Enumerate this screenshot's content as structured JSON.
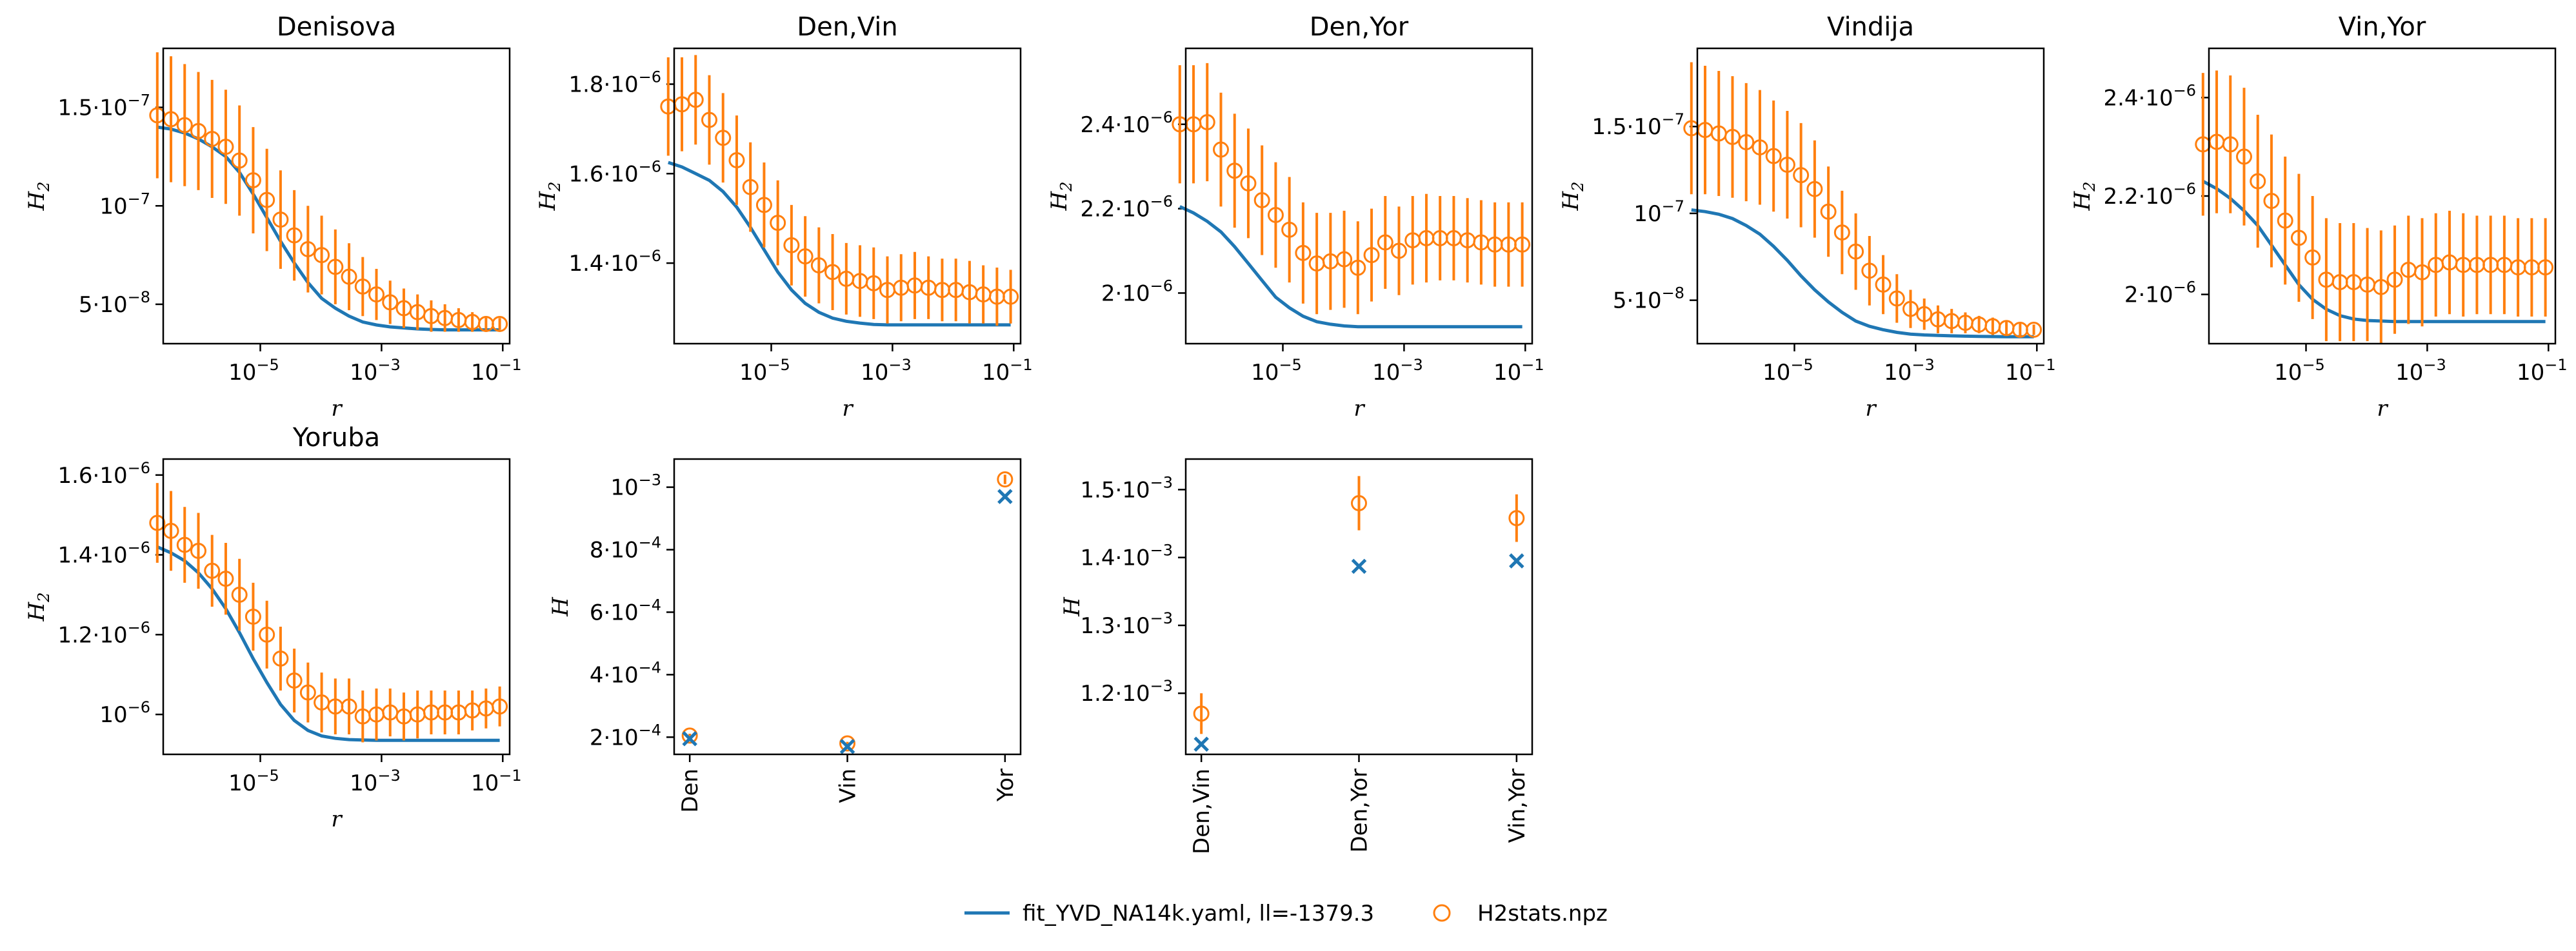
{
  "colors": {
    "model": "#1f77b4",
    "data": "#ff7f0e"
  },
  "legend": {
    "placement": "bottom-center",
    "model_label": "fit_YVD_NA14k.yaml, ll=-1379.3",
    "data_label": "H2stats.npz"
  },
  "chart_data": [
    {
      "type": "line",
      "title": "Denisova",
      "xlabel": "r",
      "ylabel": "H",
      "ylabel_sub": "2",
      "xscale": "log",
      "xlim": [
        2.5e-07,
        0.13
      ],
      "ylim": [
        3e-08,
        1.8e-07
      ],
      "xticks": [
        {
          "value": 1e-05,
          "base": "10",
          "exp": "−5"
        },
        {
          "value": 0.001,
          "base": "10",
          "exp": "−3"
        },
        {
          "value": 0.1,
          "base": "10",
          "exp": "−1"
        }
      ],
      "yticks": [
        {
          "value": 5e-08,
          "coef": "5",
          "exp": "−8"
        },
        {
          "value": 1e-07,
          "coef": "",
          "exp": "−7"
        },
        {
          "value": 1.5e-07,
          "coef": "1.5",
          "exp": "−7"
        }
      ],
      "model": [
        1.4e-07,
        1.39e-07,
        1.37e-07,
        1.34e-07,
        1.3e-07,
        1.25e-07,
        1.17e-07,
        1.06e-07,
        9.4e-08,
        8.2e-08,
        7.1e-08,
        6.1e-08,
        5.3e-08,
        4.8e-08,
        4.4e-08,
        4.1e-08,
        3.95e-08,
        3.85e-08,
        3.8e-08,
        3.75e-08,
        3.72e-08,
        3.7e-08,
        3.7e-08,
        3.7e-08,
        3.7e-08,
        3.7e-08
      ],
      "data": [
        1.46e-07,
        1.44e-07,
        1.41e-07,
        1.38e-07,
        1.34e-07,
        1.3e-07,
        1.23e-07,
        1.13e-07,
        1.03e-07,
        9.3e-08,
        8.5e-08,
        7.8e-08,
        7.5e-08,
        6.9e-08,
        6.4e-08,
        5.9e-08,
        5.5e-08,
        5.1e-08,
        4.8e-08,
        4.6e-08,
        4.4e-08,
        4.3e-08,
        4.2e-08,
        4.1e-08,
        4e-08,
        4e-08
      ],
      "err": [
        3.2e-08,
        3.2e-08,
        3.1e-08,
        3e-08,
        3e-08,
        2.9e-08,
        2.8e-08,
        2.7e-08,
        2.6e-08,
        2.5e-08,
        2.3e-08,
        2.2e-08,
        2e-08,
        1.9e-08,
        1.7e-08,
        1.5e-08,
        1.3e-08,
        1.1e-08,
        1e-08,
        9e-09,
        8e-09,
        7e-09,
        6e-09,
        5e-09,
        4e-09,
        3e-09
      ]
    },
    {
      "type": "line",
      "title": "Den,Vin",
      "xlabel": "r",
      "ylabel": "H",
      "ylabel_sub": "2",
      "xscale": "log",
      "xlim": [
        2.5e-07,
        0.13
      ],
      "ylim": [
        1.22e-06,
        1.88e-06
      ],
      "xticks": [
        {
          "value": 1e-05,
          "base": "10",
          "exp": "−5"
        },
        {
          "value": 0.001,
          "base": "10",
          "exp": "−3"
        },
        {
          "value": 0.1,
          "base": "10",
          "exp": "−1"
        }
      ],
      "yticks": [
        {
          "value": 1.4e-06,
          "coef": "1.4",
          "exp": "−6"
        },
        {
          "value": 1.6e-06,
          "coef": "1.6",
          "exp": "−6"
        },
        {
          "value": 1.8e-06,
          "coef": "1.8",
          "exp": "−6"
        }
      ],
      "model": [
        1.625e-06,
        1.615e-06,
        1.6e-06,
        1.585e-06,
        1.56e-06,
        1.525e-06,
        1.48e-06,
        1.43e-06,
        1.38e-06,
        1.34e-06,
        1.31e-06,
        1.29e-06,
        1.277e-06,
        1.27e-06,
        1.266e-06,
        1.263e-06,
        1.262e-06,
        1.262e-06,
        1.262e-06,
        1.262e-06,
        1.262e-06,
        1.262e-06,
        1.262e-06,
        1.262e-06,
        1.262e-06,
        1.262e-06
      ],
      "data": [
        1.75e-06,
        1.755e-06,
        1.765e-06,
        1.72e-06,
        1.68e-06,
        1.63e-06,
        1.57e-06,
        1.53e-06,
        1.49e-06,
        1.44e-06,
        1.415e-06,
        1.395e-06,
        1.38e-06,
        1.365e-06,
        1.36e-06,
        1.355e-06,
        1.34e-06,
        1.345e-06,
        1.35e-06,
        1.345e-06,
        1.34e-06,
        1.34e-06,
        1.335e-06,
        1.33e-06,
        1.325e-06,
        1.325e-06
      ],
      "err": [
        1.1e-07,
        1.05e-07,
        1e-07,
        1e-07,
        1e-07,
        1e-07,
        1e-07,
        9.5e-08,
        9.5e-08,
        9e-08,
        9e-08,
        8.5e-08,
        8.5e-08,
        8e-08,
        8e-08,
        8e-08,
        7.5e-08,
        7.5e-08,
        7.5e-08,
        7e-08,
        7e-08,
        7e-08,
        7e-08,
        6.5e-08,
        6.5e-08,
        6e-08
      ]
    },
    {
      "type": "line",
      "title": "Den,Yor",
      "xlabel": "r",
      "ylabel": "H",
      "ylabel_sub": "2",
      "xscale": "log",
      "xlim": [
        2.5e-07,
        0.13
      ],
      "ylim": [
        1.88e-06,
        2.58e-06
      ],
      "xticks": [
        {
          "value": 1e-05,
          "base": "10",
          "exp": "−5"
        },
        {
          "value": 0.001,
          "base": "10",
          "exp": "−3"
        },
        {
          "value": 0.1,
          "base": "10",
          "exp": "−1"
        }
      ],
      "yticks": [
        {
          "value": 2e-06,
          "coef": "2",
          "exp": "−6"
        },
        {
          "value": 2.2e-06,
          "coef": "2.2",
          "exp": "−6"
        },
        {
          "value": 2.4e-06,
          "coef": "2.4",
          "exp": "−6"
        }
      ],
      "model": [
        2.205e-06,
        2.19e-06,
        2.17e-06,
        2.145e-06,
        2.11e-06,
        2.07e-06,
        2.03e-06,
        1.99e-06,
        1.965e-06,
        1.945e-06,
        1.932e-06,
        1.926e-06,
        1.922e-06,
        1.92e-06,
        1.92e-06,
        1.92e-06,
        1.92e-06,
        1.92e-06,
        1.92e-06,
        1.92e-06,
        1.92e-06,
        1.92e-06,
        1.92e-06,
        1.92e-06,
        1.92e-06,
        1.92e-06
      ],
      "data": [
        2.4e-06,
        2.4e-06,
        2.405e-06,
        2.34e-06,
        2.29e-06,
        2.26e-06,
        2.22e-06,
        2.185e-06,
        2.15e-06,
        2.095e-06,
        2.07e-06,
        2.075e-06,
        2.08e-06,
        2.06e-06,
        2.09e-06,
        2.12e-06,
        2.1e-06,
        2.125e-06,
        2.13e-06,
        2.13e-06,
        2.13e-06,
        2.125e-06,
        2.12e-06,
        2.115e-06,
        2.115e-06,
        2.115e-06
      ],
      "err": [
        1.4e-07,
        1.4e-07,
        1.4e-07,
        1.35e-07,
        1.35e-07,
        1.3e-07,
        1.3e-07,
        1.25e-07,
        1.25e-07,
        1.2e-07,
        1.2e-07,
        1.15e-07,
        1.15e-07,
        1.1e-07,
        1.1e-07,
        1.1e-07,
        1.05e-07,
        1.05e-07,
        1.05e-07,
        1e-07,
        1e-07,
        1e-07,
        1e-07,
        1e-07,
        1e-07,
        1e-07
      ]
    },
    {
      "type": "line",
      "title": "Vindija",
      "xlabel": "r",
      "ylabel": "H",
      "ylabel_sub": "2",
      "xscale": "log",
      "xlim": [
        2.5e-07,
        0.13
      ],
      "ylim": [
        2.5e-08,
        1.95e-07
      ],
      "xticks": [
        {
          "value": 1e-05,
          "base": "10",
          "exp": "−5"
        },
        {
          "value": 0.001,
          "base": "10",
          "exp": "−3"
        },
        {
          "value": 0.1,
          "base": "10",
          "exp": "−1"
        }
      ],
      "yticks": [
        {
          "value": 5e-08,
          "coef": "5",
          "exp": "−8"
        },
        {
          "value": 1e-07,
          "coef": "",
          "exp": "−7"
        },
        {
          "value": 1.5e-07,
          "coef": "1.5",
          "exp": "−7"
        }
      ],
      "model": [
        1.02e-07,
        1.01e-07,
        9.95e-08,
        9.7e-08,
        9.3e-08,
        8.8e-08,
        8.1e-08,
        7.3e-08,
        6.4e-08,
        5.6e-08,
        4.9e-08,
        4.3e-08,
        3.8e-08,
        3.5e-08,
        3.3e-08,
        3.15e-08,
        3.05e-08,
        3e-08,
        2.97e-08,
        2.95e-08,
        2.93e-08,
        2.92e-08,
        2.91e-08,
        2.9e-08,
        2.9e-08,
        2.9e-08
      ],
      "data": [
        1.49e-07,
        1.48e-07,
        1.46e-07,
        1.44e-07,
        1.41e-07,
        1.38e-07,
        1.33e-07,
        1.28e-07,
        1.22e-07,
        1.14e-07,
        1.01e-07,
        8.9e-08,
        7.8e-08,
        6.7e-08,
        5.9e-08,
        5.1e-08,
        4.5e-08,
        4.2e-08,
        3.9e-08,
        3.8e-08,
        3.7e-08,
        3.6e-08,
        3.5e-08,
        3.4e-08,
        3.3e-08,
        3.3e-08
      ],
      "err": [
        3.8e-08,
        3.7e-08,
        3.6e-08,
        3.5e-08,
        3.4e-08,
        3.3e-08,
        3.2e-08,
        3.1e-08,
        3e-08,
        2.8e-08,
        2.6e-08,
        2.4e-08,
        2.2e-08,
        2e-08,
        1.7e-08,
        1.4e-08,
        1.1e-08,
        9e-09,
        8e-09,
        7e-09,
        6e-09,
        5e-09,
        5e-09,
        4e-09,
        4e-09,
        3e-09
      ]
    },
    {
      "type": "line",
      "title": "Vin,Yor",
      "xlabel": "r",
      "ylabel": "H",
      "ylabel_sub": "2",
      "xscale": "log",
      "xlim": [
        2.5e-07,
        0.13
      ],
      "ylim": [
        1.9e-06,
        2.5e-06
      ],
      "xticks": [
        {
          "value": 1e-05,
          "base": "10",
          "exp": "−5"
        },
        {
          "value": 0.001,
          "base": "10",
          "exp": "−3"
        },
        {
          "value": 0.1,
          "base": "10",
          "exp": "−1"
        }
      ],
      "yticks": [
        {
          "value": 2e-06,
          "coef": "2",
          "exp": "−6"
        },
        {
          "value": 2.2e-06,
          "coef": "2.2",
          "exp": "−6"
        },
        {
          "value": 2.4e-06,
          "coef": "2.4",
          "exp": "−6"
        }
      ],
      "model": [
        2.23e-06,
        2.215e-06,
        2.195e-06,
        2.17e-06,
        2.14e-06,
        2.1e-06,
        2.06e-06,
        2.02e-06,
        1.99e-06,
        1.97e-06,
        1.957e-06,
        1.95e-06,
        1.947e-06,
        1.946e-06,
        1.945e-06,
        1.945e-06,
        1.945e-06,
        1.945e-06,
        1.945e-06,
        1.945e-06,
        1.945e-06,
        1.945e-06,
        1.945e-06,
        1.945e-06,
        1.945e-06,
        1.945e-06
      ],
      "data": [
        2.305e-06,
        2.31e-06,
        2.305e-06,
        2.28e-06,
        2.23e-06,
        2.19e-06,
        2.15e-06,
        2.115e-06,
        2.075e-06,
        2.03e-06,
        2.025e-06,
        2.025e-06,
        2.02e-06,
        2.015e-06,
        2.03e-06,
        2.05e-06,
        2.045e-06,
        2.06e-06,
        2.065e-06,
        2.06e-06,
        2.06e-06,
        2.06e-06,
        2.06e-06,
        2.055e-06,
        2.055e-06,
        2.055e-06
      ],
      "err": [
        1.45e-07,
        1.45e-07,
        1.4e-07,
        1.4e-07,
        1.35e-07,
        1.35e-07,
        1.3e-07,
        1.3e-07,
        1.25e-07,
        1.25e-07,
        1.2e-07,
        1.2e-07,
        1.15e-07,
        1.15e-07,
        1.1e-07,
        1.1e-07,
        1.1e-07,
        1.05e-07,
        1.05e-07,
        1.05e-07,
        1e-07,
        1e-07,
        1e-07,
        1e-07,
        1e-07,
        1e-07
      ]
    },
    {
      "type": "line",
      "title": "Yoruba",
      "xlabel": "r",
      "ylabel": "H",
      "ylabel_sub": "2",
      "xscale": "log",
      "xlim": [
        2.5e-07,
        0.13
      ],
      "ylim": [
        9e-07,
        1.64e-06
      ],
      "xticks": [
        {
          "value": 1e-05,
          "base": "10",
          "exp": "−5"
        },
        {
          "value": 0.001,
          "base": "10",
          "exp": "−3"
        },
        {
          "value": 0.1,
          "base": "10",
          "exp": "−1"
        }
      ],
      "yticks": [
        {
          "value": 1e-06,
          "coef": "",
          "exp": "−6"
        },
        {
          "value": 1.2e-06,
          "coef": "1.2",
          "exp": "−6"
        },
        {
          "value": 1.4e-06,
          "coef": "1.4",
          "exp": "−6"
        },
        {
          "value": 1.6e-06,
          "coef": "1.6",
          "exp": "−6"
        }
      ],
      "model": [
        1.42e-06,
        1.405e-06,
        1.385e-06,
        1.355e-06,
        1.315e-06,
        1.265e-06,
        1.205e-06,
        1.14e-06,
        1.08e-06,
        1.025e-06,
        9.85e-07,
        9.6e-07,
        9.46e-07,
        9.4e-07,
        9.37e-07,
        9.36e-07,
        9.35e-07,
        9.35e-07,
        9.35e-07,
        9.35e-07,
        9.35e-07,
        9.35e-07,
        9.35e-07,
        9.35e-07,
        9.35e-07,
        9.35e-07
      ],
      "data": [
        1.48e-06,
        1.46e-06,
        1.425e-06,
        1.41e-06,
        1.36e-06,
        1.34e-06,
        1.3e-06,
        1.245e-06,
        1.2e-06,
        1.14e-06,
        1.085e-06,
        1.055e-06,
        1.03e-06,
        1.02e-06,
        1.02e-06,
        9.95e-07,
        1e-06,
        1.005e-06,
        9.95e-07,
        1e-06,
        1.005e-06,
        1.005e-06,
        1.005e-06,
        1.01e-06,
        1.015e-06,
        1.02e-06
      ],
      "err": [
        1e-07,
        1e-07,
        9.5e-08,
        9.5e-08,
        9e-08,
        9e-08,
        9e-08,
        8.5e-08,
        8.5e-08,
        8e-08,
        8e-08,
        7.5e-08,
        7.5e-08,
        7e-08,
        7e-08,
        6.5e-08,
        6.5e-08,
        6e-08,
        6e-08,
        6e-08,
        5.5e-08,
        5.5e-08,
        5.5e-08,
        5e-08,
        5e-08,
        5e-08
      ]
    },
    {
      "type": "scatter",
      "title": "",
      "xlabel": "",
      "ylabel": "H",
      "ylabel_sub": "",
      "categories": [
        "Den",
        "Vin",
        "Yor"
      ],
      "ylim": [
        0.000145,
        0.00109
      ],
      "yticks": [
        {
          "value": 0.0002,
          "coef": "2",
          "exp": "−4"
        },
        {
          "value": 0.0004,
          "coef": "4",
          "exp": "−4"
        },
        {
          "value": 0.0006,
          "coef": "6",
          "exp": "−4"
        },
        {
          "value": 0.0008,
          "coef": "8",
          "exp": "−4"
        },
        {
          "value": 0.001,
          "coef": "",
          "exp": "−3"
        }
      ],
      "model": [
        0.000195,
        0.00017,
        0.00097
      ],
      "data": [
        0.000205,
        0.00018,
        0.001025
      ],
      "err": [
        6e-06,
        5e-06,
        1.5e-05
      ]
    },
    {
      "type": "scatter",
      "title": "",
      "xlabel": "",
      "ylabel": "H",
      "ylabel_sub": "",
      "categories": [
        "Den,Vin",
        "Den,Yor",
        "Vin,Yor"
      ],
      "ylim": [
        0.00111,
        0.001545
      ],
      "yticks": [
        {
          "value": 0.0012,
          "coef": "1.2",
          "exp": "−3"
        },
        {
          "value": 0.0013,
          "coef": "1.3",
          "exp": "−3"
        },
        {
          "value": 0.0014,
          "coef": "1.4",
          "exp": "−3"
        },
        {
          "value": 0.0015,
          "coef": "1.5",
          "exp": "−3"
        }
      ],
      "model": [
        0.001125,
        0.001387,
        0.001395
      ],
      "data": [
        0.00117,
        0.00148,
        0.001458
      ],
      "err": [
        3e-05,
        4e-05,
        3.5e-05
      ]
    }
  ]
}
